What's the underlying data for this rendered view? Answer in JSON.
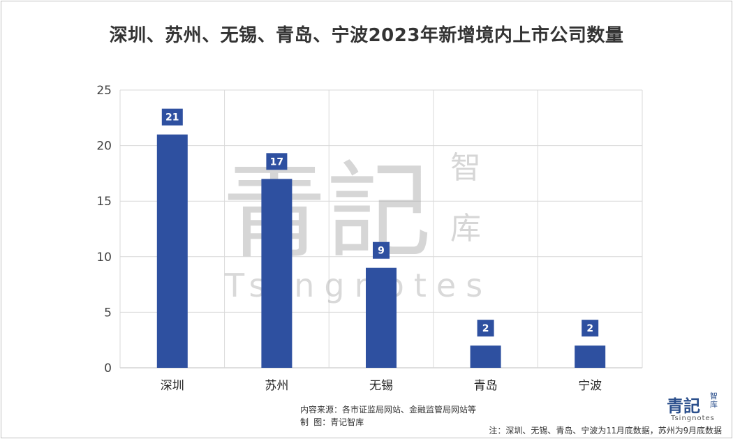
{
  "chart_data": {
    "type": "bar",
    "title": "深圳、苏州、无锡、青岛、宁波2023年新增境内上市公司数量",
    "categories": [
      "深圳",
      "苏州",
      "无锡",
      "青岛",
      "宁波"
    ],
    "values": [
      21,
      17,
      9,
      2,
      2
    ],
    "data_labels": [
      "21",
      "17",
      "9",
      "2",
      "2"
    ],
    "ylim": [
      0,
      25
    ],
    "yticks": [
      0,
      5,
      10,
      15,
      20,
      25
    ],
    "xlabel": "",
    "ylabel": "",
    "grid": true,
    "legend": "none",
    "bar_color": "#2e50a0"
  },
  "watermark": {
    "main": "青記",
    "side_top": "智",
    "side_bottom": "库",
    "latin": "Tsingnotes"
  },
  "footer": {
    "source": "内容来源：各市证监局网站、金融监管局网站等",
    "maker": "制    图：青记智库",
    "note": "注：深圳、无锡、青岛、宁波为11月底数据，苏州为9月底数据"
  },
  "logo": {
    "main": "青記",
    "side": "智库",
    "latin": "Tsingnotes"
  }
}
